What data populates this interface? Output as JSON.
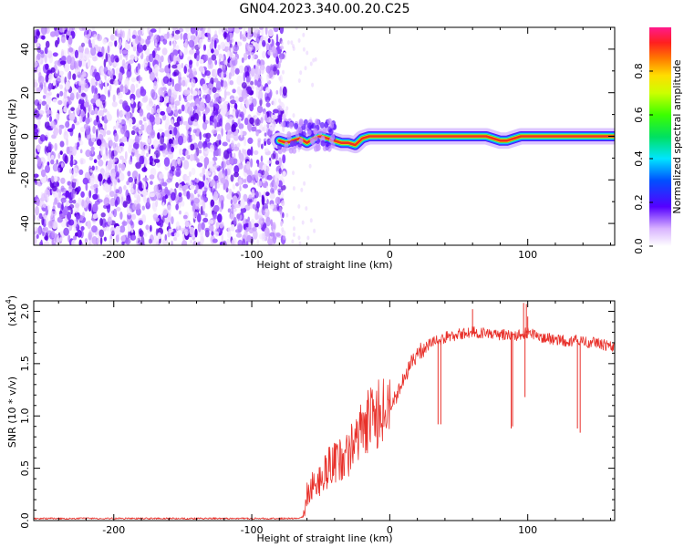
{
  "figure": {
    "title": "GN04.2023.340.00.20.C25"
  },
  "chart_data": [
    {
      "type": "heatmap",
      "title": "GN04.2023.340.00.20.C25",
      "xlabel": "Height of straight line (km)",
      "ylabel": "Frequency (Hz)",
      "xlim": [
        -258,
        163
      ],
      "ylim": [
        -50,
        50
      ],
      "xticks": [
        -200,
        -100,
        0,
        100
      ],
      "yticks": [
        -40,
        -20,
        0,
        20,
        40
      ],
      "noise_region_x": [
        -258,
        -80
      ],
      "transition_x": -80,
      "signal_centerline": [
        [
          -80,
          -2
        ],
        [
          -75,
          -3
        ],
        [
          -70,
          -2
        ],
        [
          -65,
          -1
        ],
        [
          -60,
          -3
        ],
        [
          -55,
          -1
        ],
        [
          -50,
          0
        ],
        [
          -45,
          -1
        ],
        [
          -40,
          -2
        ],
        [
          -35,
          -3
        ],
        [
          -30,
          -3
        ],
        [
          -25,
          -4
        ],
        [
          -20,
          -1
        ],
        [
          -15,
          0
        ],
        [
          -10,
          0
        ],
        [
          -5,
          0
        ],
        [
          0,
          0
        ],
        [
          10,
          0
        ],
        [
          20,
          0
        ],
        [
          30,
          0
        ],
        [
          40,
          0
        ],
        [
          50,
          0
        ],
        [
          60,
          0
        ],
        [
          70,
          0
        ],
        [
          75,
          -1
        ],
        [
          80,
          -2
        ],
        [
          85,
          -2
        ],
        [
          90,
          -1
        ],
        [
          95,
          0
        ],
        [
          100,
          0
        ],
        [
          110,
          0
        ],
        [
          120,
          0
        ],
        [
          130,
          0
        ],
        [
          140,
          0
        ],
        [
          150,
          0
        ],
        [
          163,
          0
        ]
      ],
      "colorbar": {
        "label": "Normalized spectral amplitude",
        "range": [
          0,
          1
        ],
        "ticks": [
          0.0,
          0.2,
          0.4,
          0.6,
          0.8
        ],
        "tick_labels": [
          "0.0",
          "0.2",
          "0.4",
          "0.6",
          "0.8"
        ]
      },
      "grid": false
    },
    {
      "type": "line",
      "xlabel": "Height of straight line (km)",
      "ylabel": "SNR (10 * v/v)",
      "multiplier_label": "(x10",
      "multiplier_exp": "4",
      "multiplier_close": ")",
      "xlim": [
        -258,
        163
      ],
      "ylim": [
        0,
        2.1
      ],
      "xticks": [
        -200,
        -100,
        0,
        100
      ],
      "yticks": [
        0.0,
        0.5,
        1.0,
        1.5,
        2.0
      ],
      "ytick_labels": [
        "0.0",
        "0.5",
        "1.0",
        "1.5",
        "2.0"
      ],
      "color": "#e8302a",
      "series": [
        {
          "x": [
            -258,
            -200,
            -150,
            -100,
            -65,
            -62,
            -60,
            -55,
            -50,
            -45,
            -40,
            -35,
            -30,
            -25,
            -20,
            -15,
            -10,
            -5,
            0,
            5,
            10,
            15,
            20,
            25,
            30,
            35,
            40,
            45,
            50,
            55,
            60,
            65,
            70,
            75,
            80,
            85,
            90,
            95,
            100,
            105,
            110,
            115,
            120,
            125,
            130,
            135,
            140,
            145,
            150,
            155,
            163
          ],
          "values": [
            0.02,
            0.02,
            0.02,
            0.02,
            0.02,
            0.05,
            0.25,
            0.35,
            0.4,
            0.5,
            0.55,
            0.6,
            0.65,
            0.75,
            0.85,
            0.95,
            1.0,
            1.05,
            1.1,
            1.2,
            1.35,
            1.5,
            1.6,
            1.65,
            1.7,
            1.72,
            1.75,
            1.77,
            1.78,
            1.79,
            1.8,
            1.79,
            1.79,
            1.78,
            1.78,
            1.77,
            1.77,
            1.77,
            1.8,
            1.77,
            1.75,
            1.74,
            1.73,
            1.72,
            1.72,
            1.72,
            1.71,
            1.7,
            1.7,
            1.68,
            1.67
          ]
        }
      ],
      "spikes_down": [
        [
          35,
          0.92
        ],
        [
          37,
          0.92
        ],
        [
          88,
          0.88
        ],
        [
          89,
          0.9
        ],
        [
          98,
          1.18
        ],
        [
          136,
          0.88
        ],
        [
          138,
          0.84
        ]
      ],
      "spikes_up": [
        [
          60,
          2.02
        ],
        [
          97,
          2.08
        ],
        [
          99,
          2.07
        ],
        [
          100,
          1.95
        ]
      ],
      "grid": false
    }
  ]
}
